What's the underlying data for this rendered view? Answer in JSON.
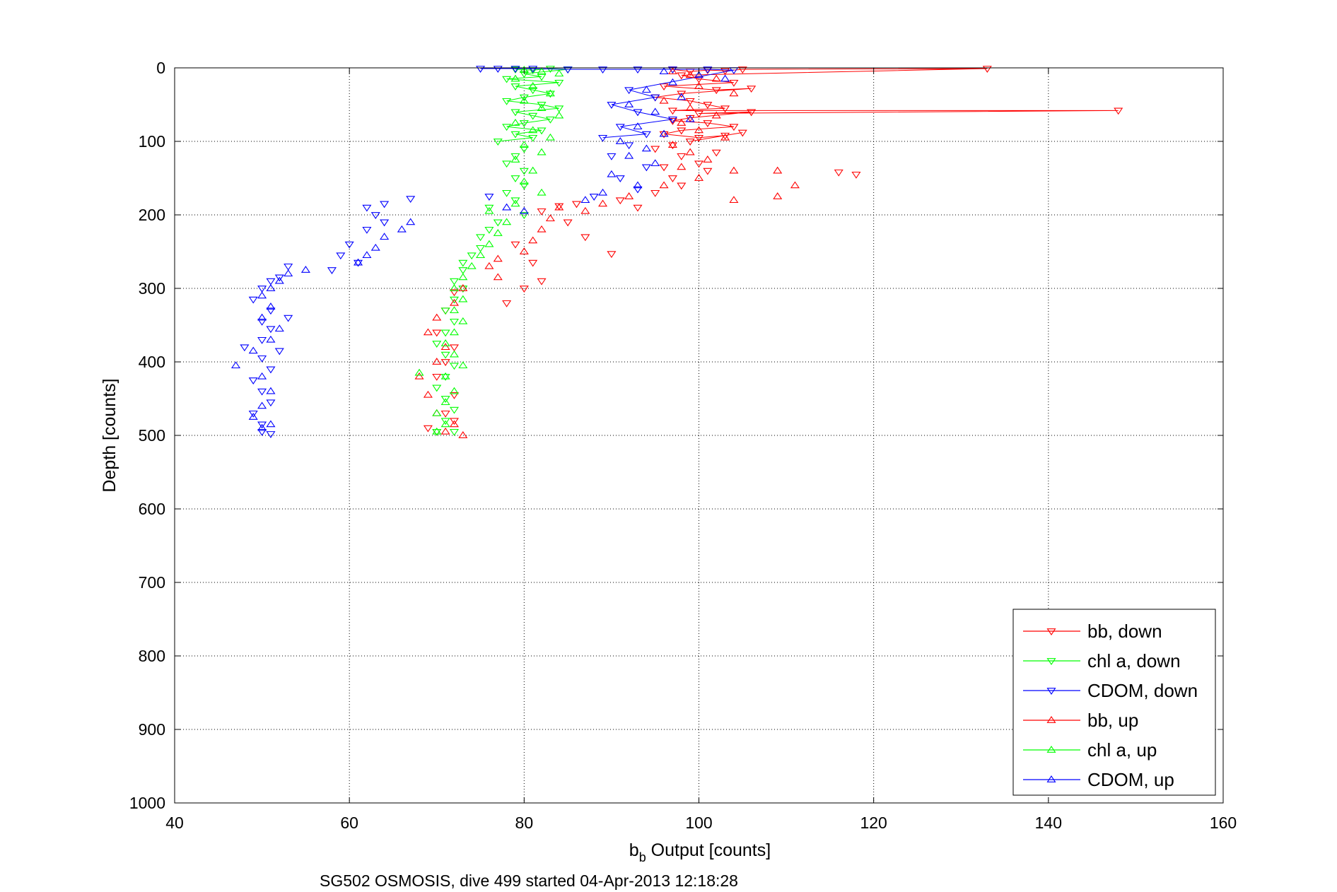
{
  "chart_data": {
    "type": "scatter",
    "xlabel_main": "b",
    "xlabel_sub": "b",
    "xlabel_rest": " Output [counts]",
    "ylabel": "Depth [counts]",
    "subtitle": "SG502 OSMOSIS, dive 499 started 04-Apr-2013 12:18:28",
    "xlim": [
      40,
      160
    ],
    "ylim": [
      0,
      1000
    ],
    "y_reversed": true,
    "x_ticks": [
      40,
      60,
      80,
      100,
      120,
      140,
      160
    ],
    "y_ticks": [
      0,
      100,
      200,
      300,
      400,
      500,
      600,
      700,
      800,
      900,
      1000
    ],
    "grid": true,
    "legend_position": "bottom-right",
    "series": [
      {
        "name": "bb, down",
        "color": "#ff0000",
        "marker": "triangle-down",
        "points": [
          [
            97,
            2
          ],
          [
            99,
            5
          ],
          [
            101,
            3
          ],
          [
            103,
            4
          ],
          [
            105,
            2
          ],
          [
            133,
            1
          ],
          [
            98,
            10
          ],
          [
            100,
            15
          ],
          [
            104,
            20
          ],
          [
            96,
            25
          ],
          [
            102,
            30
          ],
          [
            106,
            28
          ],
          [
            98,
            35
          ],
          [
            95,
            40
          ],
          [
            99,
            45
          ],
          [
            101,
            50
          ],
          [
            103,
            55
          ],
          [
            97,
            58
          ],
          [
            148,
            58
          ],
          [
            100,
            62
          ],
          [
            106,
            60
          ],
          [
            99,
            68
          ],
          [
            97,
            72
          ],
          [
            101,
            75
          ],
          [
            104,
            80
          ],
          [
            98,
            85
          ],
          [
            96,
            90
          ],
          [
            100,
            95
          ],
          [
            103,
            92
          ],
          [
            105,
            88
          ],
          [
            99,
            100
          ],
          [
            97,
            105
          ],
          [
            95,
            110
          ],
          [
            102,
            115
          ],
          [
            98,
            120
          ],
          [
            100,
            130
          ],
          [
            96,
            135
          ],
          [
            101,
            140
          ],
          [
            97,
            150
          ],
          [
            98,
            160
          ],
          [
            116,
            142
          ],
          [
            118,
            145
          ],
          [
            95,
            170
          ],
          [
            91,
            180
          ],
          [
            93,
            190
          ],
          [
            86,
            185
          ],
          [
            84,
            188
          ],
          [
            82,
            195
          ],
          [
            85,
            210
          ],
          [
            87,
            230
          ],
          [
            90,
            253
          ],
          [
            79,
            240
          ],
          [
            81,
            265
          ],
          [
            80,
            300
          ],
          [
            82,
            290
          ],
          [
            78,
            320
          ],
          [
            72,
            305
          ],
          [
            71,
            330
          ],
          [
            70,
            360
          ],
          [
            72,
            380
          ],
          [
            71,
            400
          ],
          [
            70,
            420
          ],
          [
            72,
            445
          ],
          [
            71,
            470
          ],
          [
            72,
            480
          ],
          [
            70,
            495
          ],
          [
            69,
            490
          ]
        ]
      },
      {
        "name": "chl a, down",
        "color": "#00ff00",
        "marker": "triangle-down",
        "points": [
          [
            79,
            2
          ],
          [
            81,
            3
          ],
          [
            83,
            1
          ],
          [
            85,
            2
          ],
          [
            80,
            8
          ],
          [
            82,
            12
          ],
          [
            78,
            15
          ],
          [
            84,
            20
          ],
          [
            79,
            25
          ],
          [
            81,
            30
          ],
          [
            83,
            35
          ],
          [
            80,
            40
          ],
          [
            78,
            45
          ],
          [
            82,
            50
          ],
          [
            84,
            55
          ],
          [
            79,
            60
          ],
          [
            81,
            65
          ],
          [
            83,
            70
          ],
          [
            80,
            75
          ],
          [
            78,
            80
          ],
          [
            82,
            85
          ],
          [
            79,
            90
          ],
          [
            81,
            95
          ],
          [
            77,
            100
          ],
          [
            80,
            110
          ],
          [
            79,
            120
          ],
          [
            78,
            130
          ],
          [
            80,
            140
          ],
          [
            79,
            150
          ],
          [
            80,
            160
          ],
          [
            78,
            170
          ],
          [
            79,
            180
          ],
          [
            76,
            190
          ],
          [
            80,
            200
          ],
          [
            77,
            210
          ],
          [
            76,
            220
          ],
          [
            75,
            230
          ],
          [
            75,
            245
          ],
          [
            74,
            255
          ],
          [
            73,
            265
          ],
          [
            73,
            275
          ],
          [
            72,
            290
          ],
          [
            73,
            300
          ],
          [
            72,
            315
          ],
          [
            71,
            330
          ],
          [
            72,
            345
          ],
          [
            71,
            360
          ],
          [
            70,
            375
          ],
          [
            71,
            390
          ],
          [
            72,
            405
          ],
          [
            71,
            420
          ],
          [
            70,
            435
          ],
          [
            71,
            450
          ],
          [
            72,
            465
          ],
          [
            71,
            480
          ],
          [
            72,
            495
          ],
          [
            70,
            495
          ]
        ]
      },
      {
        "name": "CDOM, down",
        "color": "#0000ff",
        "marker": "triangle-down",
        "points": [
          [
            75,
            1
          ],
          [
            77,
            1
          ],
          [
            79,
            1
          ],
          [
            81,
            1
          ],
          [
            85,
            2
          ],
          [
            89,
            2
          ],
          [
            93,
            2
          ],
          [
            97,
            2
          ],
          [
            101,
            2
          ],
          [
            104,
            3
          ],
          [
            92,
            30
          ],
          [
            95,
            40
          ],
          [
            90,
            50
          ],
          [
            93,
            60
          ],
          [
            97,
            70
          ],
          [
            91,
            80
          ],
          [
            94,
            90
          ],
          [
            89,
            95
          ],
          [
            92,
            105
          ],
          [
            90,
            120
          ],
          [
            94,
            135
          ],
          [
            91,
            150
          ],
          [
            93,
            165
          ],
          [
            88,
            175
          ],
          [
            76,
            175
          ],
          [
            67,
            178
          ],
          [
            64,
            185
          ],
          [
            62,
            190
          ],
          [
            63,
            200
          ],
          [
            64,
            210
          ],
          [
            62,
            220
          ],
          [
            60,
            240
          ],
          [
            59,
            255
          ],
          [
            61,
            265
          ],
          [
            58,
            275
          ],
          [
            53,
            270
          ],
          [
            52,
            285
          ],
          [
            51,
            290
          ],
          [
            50,
            300
          ],
          [
            49,
            315
          ],
          [
            51,
            330
          ],
          [
            50,
            345
          ],
          [
            53,
            340
          ],
          [
            51,
            355
          ],
          [
            50,
            370
          ],
          [
            52,
            385
          ],
          [
            48,
            380
          ],
          [
            50,
            395
          ],
          [
            51,
            410
          ],
          [
            49,
            425
          ],
          [
            50,
            440
          ],
          [
            51,
            455
          ],
          [
            49,
            470
          ],
          [
            50,
            485
          ],
          [
            50,
            495
          ],
          [
            51,
            498
          ]
        ]
      },
      {
        "name": "bb, up",
        "color": "#ff0000",
        "marker": "triangle-up",
        "points": [
          [
            97,
            5
          ],
          [
            99,
            10
          ],
          [
            102,
            15
          ],
          [
            100,
            25
          ],
          [
            104,
            35
          ],
          [
            96,
            45
          ],
          [
            99,
            55
          ],
          [
            102,
            65
          ],
          [
            98,
            75
          ],
          [
            100,
            85
          ],
          [
            103,
            95
          ],
          [
            97,
            105
          ],
          [
            99,
            115
          ],
          [
            101,
            125
          ],
          [
            98,
            135
          ],
          [
            104,
            140
          ],
          [
            109,
            140
          ],
          [
            111,
            160
          ],
          [
            109,
            175
          ],
          [
            104,
            180
          ],
          [
            100,
            150
          ],
          [
            96,
            160
          ],
          [
            92,
            175
          ],
          [
            89,
            185
          ],
          [
            87,
            195
          ],
          [
            84,
            190
          ],
          [
            83,
            205
          ],
          [
            82,
            220
          ],
          [
            81,
            235
          ],
          [
            80,
            250
          ],
          [
            77,
            260
          ],
          [
            76,
            270
          ],
          [
            77,
            285
          ],
          [
            73,
            300
          ],
          [
            72,
            320
          ],
          [
            70,
            340
          ],
          [
            69,
            360
          ],
          [
            71,
            380
          ],
          [
            70,
            400
          ],
          [
            68,
            420
          ],
          [
            69,
            445
          ],
          [
            70,
            470
          ],
          [
            72,
            485
          ],
          [
            73,
            500
          ],
          [
            71,
            495
          ]
        ]
      },
      {
        "name": "chl a, up",
        "color": "#00ff00",
        "marker": "triangle-up",
        "points": [
          [
            80,
            3
          ],
          [
            82,
            5
          ],
          [
            84,
            8
          ],
          [
            79,
            15
          ],
          [
            81,
            25
          ],
          [
            83,
            35
          ],
          [
            80,
            45
          ],
          [
            82,
            55
          ],
          [
            84,
            65
          ],
          [
            79,
            75
          ],
          [
            81,
            85
          ],
          [
            83,
            95
          ],
          [
            80,
            105
          ],
          [
            82,
            115
          ],
          [
            79,
            125
          ],
          [
            81,
            140
          ],
          [
            80,
            155
          ],
          [
            82,
            170
          ],
          [
            79,
            185
          ],
          [
            76,
            195
          ],
          [
            78,
            210
          ],
          [
            77,
            225
          ],
          [
            76,
            240
          ],
          [
            75,
            255
          ],
          [
            74,
            270
          ],
          [
            73,
            285
          ],
          [
            72,
            300
          ],
          [
            73,
            315
          ],
          [
            72,
            330
          ],
          [
            73,
            345
          ],
          [
            72,
            360
          ],
          [
            71,
            375
          ],
          [
            72,
            390
          ],
          [
            73,
            405
          ],
          [
            71,
            420
          ],
          [
            68,
            415
          ],
          [
            72,
            440
          ],
          [
            71,
            455
          ],
          [
            70,
            470
          ],
          [
            71,
            485
          ],
          [
            70,
            495
          ]
        ]
      },
      {
        "name": "CDOM, up",
        "color": "#0000ff",
        "marker": "triangle-up",
        "points": [
          [
            96,
            5
          ],
          [
            100,
            10
          ],
          [
            103,
            15
          ],
          [
            97,
            20
          ],
          [
            94,
            30
          ],
          [
            98,
            40
          ],
          [
            92,
            50
          ],
          [
            95,
            60
          ],
          [
            99,
            70
          ],
          [
            93,
            80
          ],
          [
            96,
            90
          ],
          [
            91,
            100
          ],
          [
            94,
            110
          ],
          [
            92,
            120
          ],
          [
            95,
            130
          ],
          [
            90,
            145
          ],
          [
            93,
            160
          ],
          [
            89,
            170
          ],
          [
            87,
            180
          ],
          [
            80,
            195
          ],
          [
            78,
            190
          ],
          [
            67,
            210
          ],
          [
            66,
            220
          ],
          [
            64,
            230
          ],
          [
            63,
            245
          ],
          [
            62,
            255
          ],
          [
            61,
            265
          ],
          [
            55,
            275
          ],
          [
            53,
            280
          ],
          [
            52,
            290
          ],
          [
            51,
            300
          ],
          [
            50,
            310
          ],
          [
            51,
            325
          ],
          [
            50,
            340
          ],
          [
            52,
            355
          ],
          [
            51,
            370
          ],
          [
            49,
            385
          ],
          [
            47,
            405
          ],
          [
            50,
            420
          ],
          [
            51,
            440
          ],
          [
            50,
            460
          ],
          [
            49,
            475
          ],
          [
            50,
            490
          ],
          [
            51,
            485
          ]
        ]
      }
    ]
  }
}
